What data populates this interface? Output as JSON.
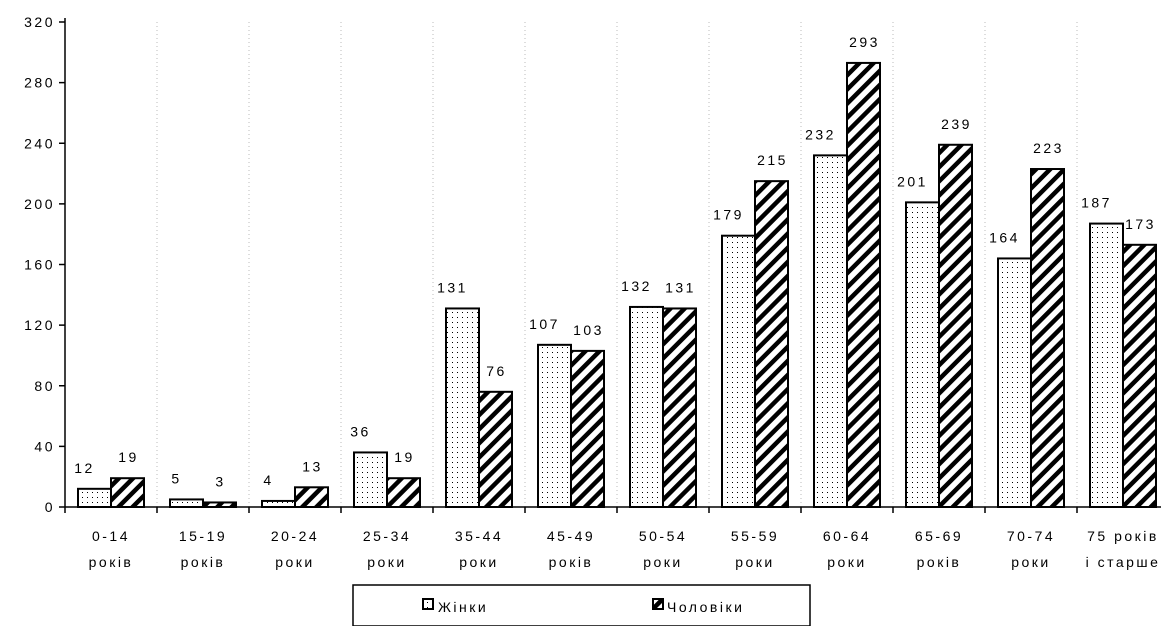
{
  "chart_data": {
    "type": "bar",
    "title": "",
    "xlabel": "",
    "ylabel": "",
    "ylim": [
      0,
      320
    ],
    "yticks": [
      "0",
      "40",
      "80",
      "120",
      "160",
      "200",
      "240",
      "280",
      "320"
    ],
    "grid": "vertical dotted lines between categories",
    "legend_position": "bottom-center",
    "categories": [
      [
        "0-14",
        "років"
      ],
      [
        "15-19",
        "років"
      ],
      [
        "20-24",
        "роки"
      ],
      [
        "25-34",
        "роки"
      ],
      [
        "35-44",
        "роки"
      ],
      [
        "45-49",
        "років"
      ],
      [
        "50-54",
        "роки"
      ],
      [
        "55-59",
        "роки"
      ],
      [
        "60-64",
        "роки"
      ],
      [
        "65-69",
        "років"
      ],
      [
        "70-74",
        "роки"
      ],
      [
        "75 років",
        "і старше"
      ]
    ],
    "series": [
      {
        "name": "Жінки",
        "pattern": "dots",
        "values": [
          12,
          5,
          4,
          36,
          131,
          107,
          132,
          179,
          232,
          201,
          164,
          187
        ]
      },
      {
        "name": "Чоловіки",
        "pattern": "diagonal-hatch",
        "values": [
          19,
          3,
          13,
          19,
          76,
          103,
          131,
          215,
          293,
          239,
          223,
          173
        ]
      }
    ],
    "colors": {
      "stroke": "#000000",
      "fill": "#ffffff"
    }
  }
}
